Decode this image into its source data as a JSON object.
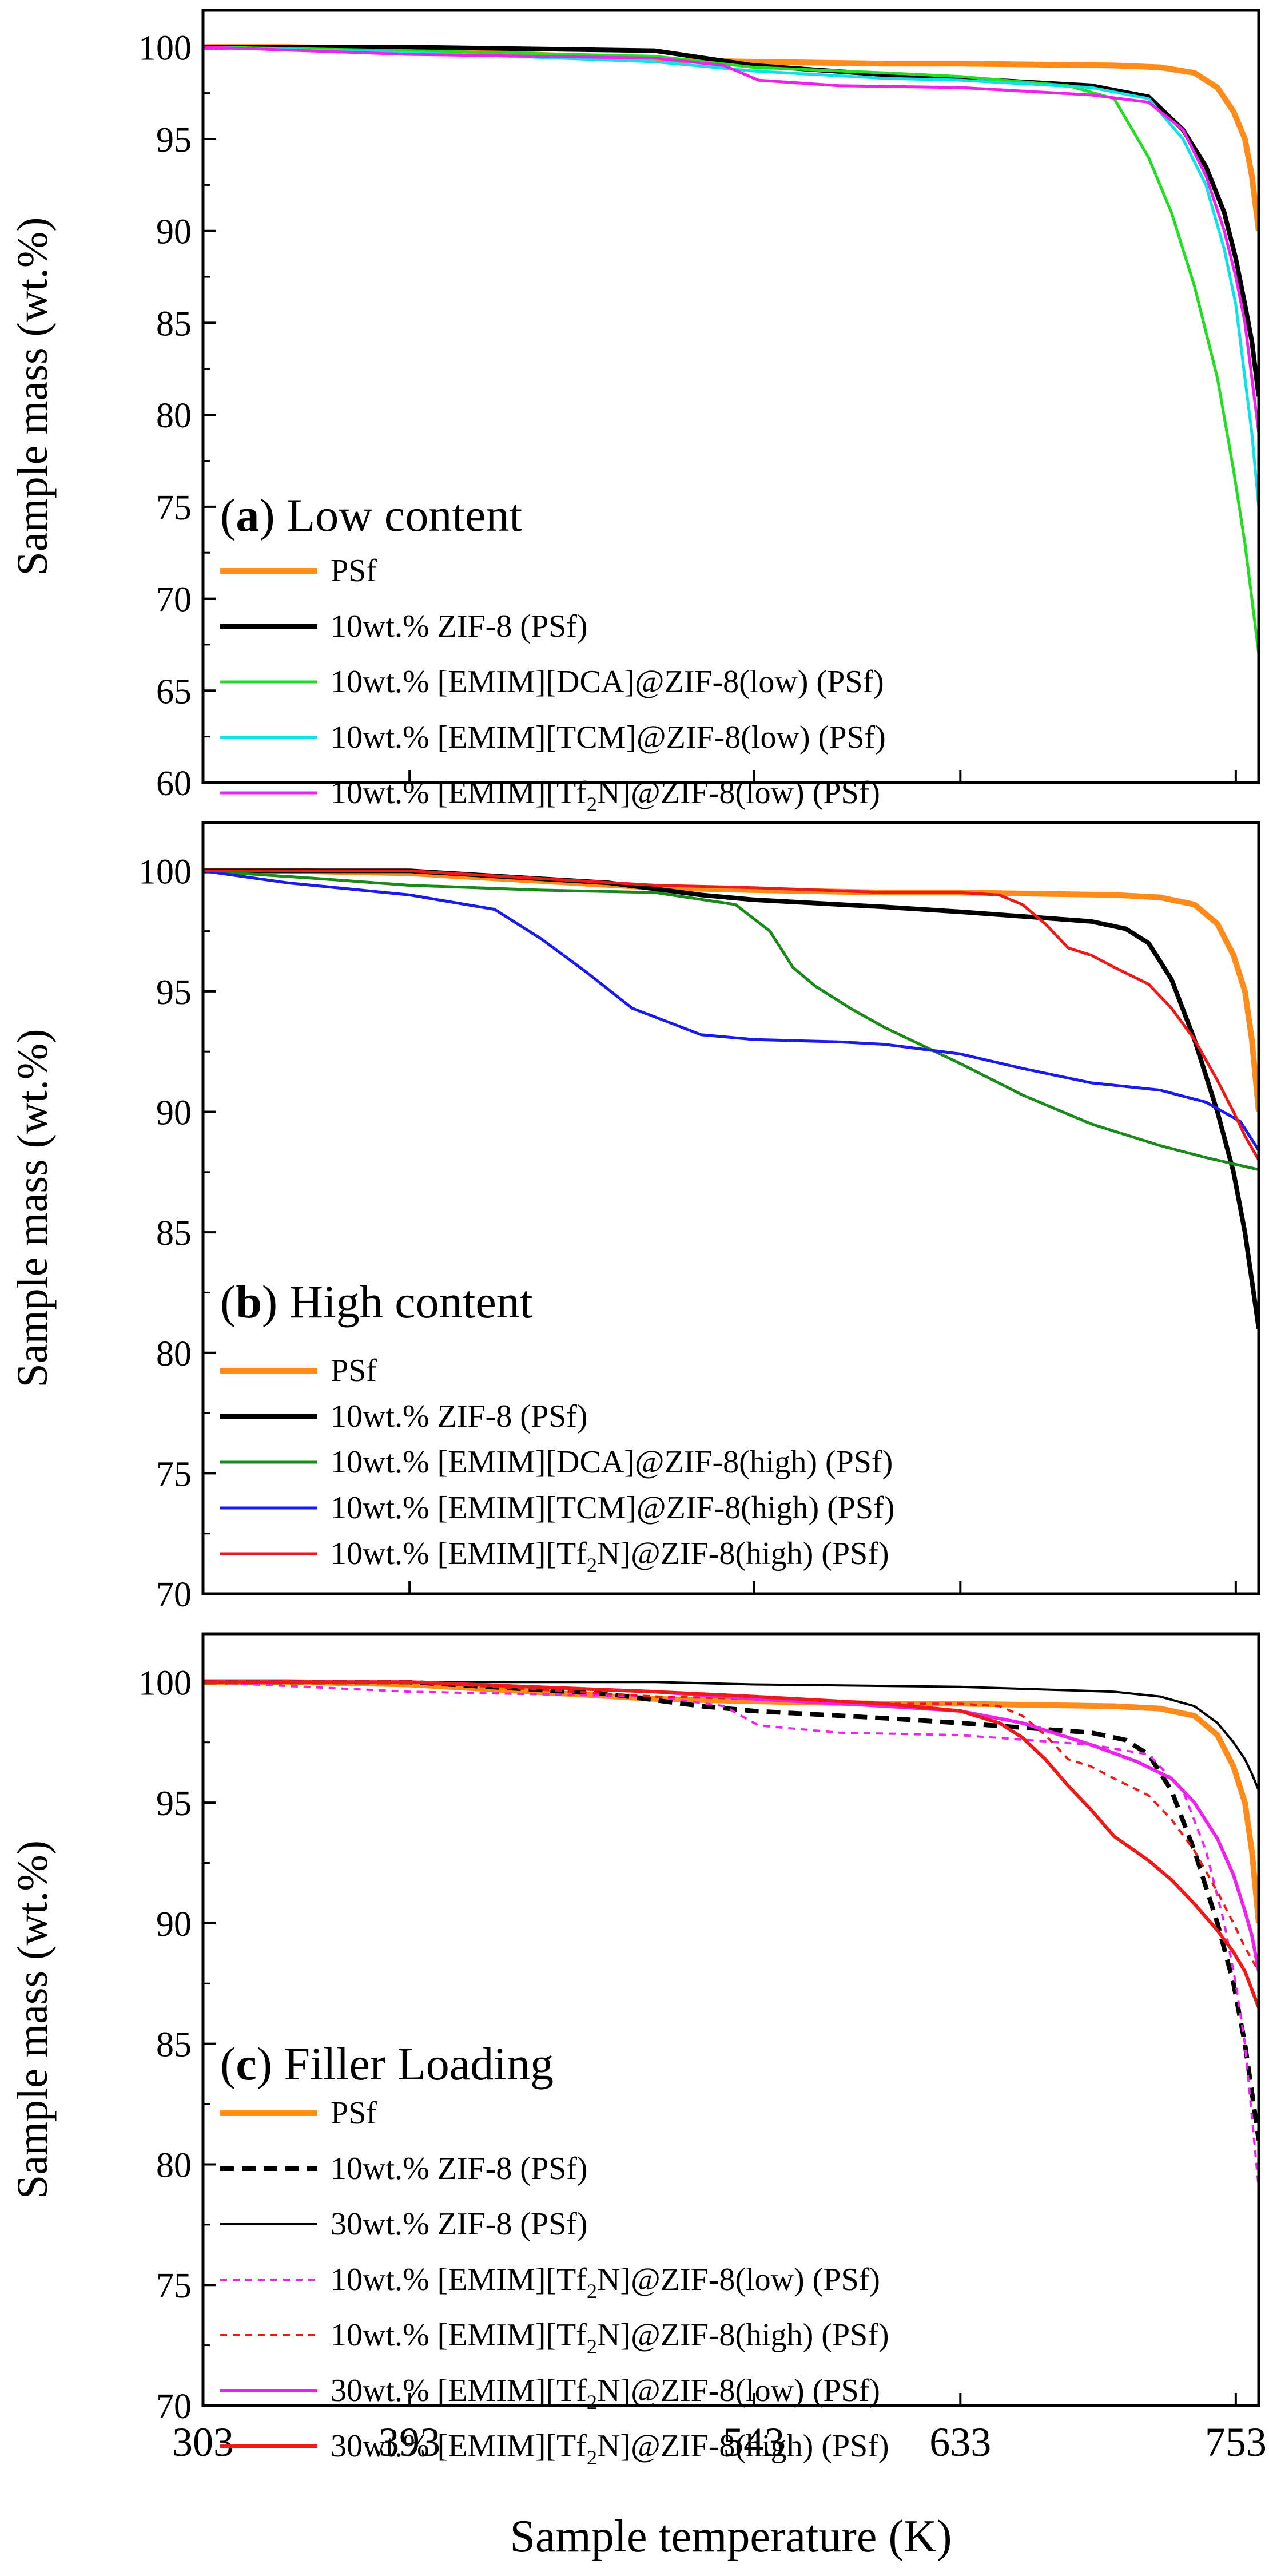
{
  "chart_data": [
    {
      "type": "line",
      "panel_label": "(a)",
      "panel_title": "Low content",
      "ylabel": "Sample mass (wt.%)",
      "xlabel": "",
      "xlim": [
        303,
        763
      ],
      "ylim": [
        60,
        102
      ],
      "yticks": [
        60,
        65,
        70,
        75,
        80,
        85,
        90,
        95,
        100
      ],
      "xticks": [
        303,
        393,
        543,
        633,
        753
      ],
      "xtick_labels_shown": false,
      "legend_position": "lower-left",
      "series": [
        {
          "name": "PSf",
          "color": "#ff8c1a",
          "width": 10,
          "dash": "",
          "x": [
            303,
            340,
            393,
            500,
            543,
            600,
            633,
            700,
            720,
            735,
            745,
            752,
            757,
            760,
            763
          ],
          "y": [
            100,
            100,
            99.9,
            99.3,
            99.2,
            99.1,
            99.1,
            99.0,
            98.9,
            98.6,
            97.8,
            96.5,
            95,
            93,
            90
          ]
        },
        {
          "name": "10wt.% ZIF-8 (PSf)",
          "color": "#000000",
          "width": 8,
          "dash": "",
          "x": [
            303,
            393,
            500,
            543,
            600,
            633,
            690,
            715,
            730,
            740,
            748,
            753,
            757,
            760,
            763
          ],
          "y": [
            100,
            100,
            99.8,
            99.0,
            98.5,
            98.3,
            97.9,
            97.3,
            95.5,
            93.5,
            91,
            88.5,
            86,
            84,
            81
          ]
        },
        {
          "name": "10wt.% [EMIM][DCA]@ZIF-8(low) (PSf)",
          "color": "#22dd22",
          "width": 5,
          "dash": "",
          "x": [
            303,
            393,
            500,
            543,
            600,
            633,
            680,
            700,
            715,
            725,
            735,
            745,
            752,
            757,
            760,
            763
          ],
          "y": [
            100,
            99.8,
            99.5,
            98.9,
            98.6,
            98.4,
            97.9,
            97.2,
            94,
            91,
            87,
            82,
            77,
            73,
            70,
            67
          ]
        },
        {
          "name": "10wt.% [EMIM][TCM]@ZIF-8(low) (PSf)",
          "color": "#11e0e8",
          "width": 5,
          "dash": "",
          "x": [
            303,
            393,
            500,
            543,
            600,
            633,
            690,
            715,
            730,
            740,
            748,
            753,
            757,
            760,
            763
          ],
          "y": [
            100,
            99.7,
            99.2,
            98.7,
            98.3,
            98.2,
            97.8,
            97.2,
            95,
            92.5,
            89,
            86,
            82,
            79,
            75
          ]
        },
        {
          "name": "10wt.% [EMIM][Tf2N]@ZIF-8(low) (PSf)",
          "color": "#ee22ee",
          "width": 5,
          "dash": "",
          "x": [
            303,
            393,
            500,
            530,
            545,
            580,
            633,
            690,
            715,
            730,
            740,
            748,
            753,
            757,
            760,
            763
          ],
          "y": [
            100,
            99.6,
            99.4,
            99.0,
            98.2,
            97.9,
            97.8,
            97.4,
            97.0,
            95.5,
            93,
            90,
            87.5,
            85,
            82,
            79
          ]
        }
      ]
    },
    {
      "type": "line",
      "panel_label": "(b)",
      "panel_title": "High content",
      "ylabel": "Sample mass (wt.%)",
      "xlabel": "",
      "xlim": [
        303,
        763
      ],
      "ylim": [
        70,
        102
      ],
      "yticks": [
        70,
        75,
        80,
        85,
        90,
        95,
        100
      ],
      "xticks": [
        303,
        393,
        543,
        633,
        753
      ],
      "xtick_labels_shown": false,
      "legend_position": "lower-left",
      "series": [
        {
          "name": "PSf",
          "color": "#ff8c1a",
          "width": 10,
          "dash": "",
          "x": [
            303,
            340,
            393,
            500,
            543,
            600,
            633,
            700,
            720,
            735,
            745,
            752,
            757,
            760,
            763
          ],
          "y": [
            100,
            100,
            99.9,
            99.3,
            99.2,
            99.1,
            99.1,
            99.0,
            98.9,
            98.6,
            97.8,
            96.5,
            95,
            93,
            90
          ]
        },
        {
          "name": "10wt.% ZIF-8 (PSf)",
          "color": "#000000",
          "width": 8,
          "dash": "",
          "x": [
            303,
            393,
            480,
            520,
            543,
            600,
            633,
            690,
            705,
            715,
            725,
            735,
            745,
            752,
            757,
            760,
            763
          ],
          "y": [
            100,
            100,
            99.5,
            99.0,
            98.8,
            98.5,
            98.3,
            97.9,
            97.6,
            97.0,
            95.5,
            93,
            90,
            87.5,
            85,
            83,
            81
          ]
        },
        {
          "name": "10wt.% [EMIM][DCA]@ZIF-8(high) (PSf)",
          "color": "#1a8a1a",
          "width": 5,
          "dash": "",
          "x": [
            303,
            350,
            393,
            450,
            500,
            535,
            550,
            560,
            570,
            585,
            600,
            633,
            660,
            690,
            720,
            740,
            763
          ],
          "y": [
            100,
            99.7,
            99.4,
            99.2,
            99.1,
            98.6,
            97.5,
            96.0,
            95.2,
            94.3,
            93.5,
            92.0,
            90.7,
            89.5,
            88.6,
            88.1,
            87.6
          ]
        },
        {
          "name": "10wt.% [EMIM][TCM]@ZIF-8(high) (PSf)",
          "color": "#1a1aee",
          "width": 5,
          "dash": "",
          "x": [
            303,
            340,
            393,
            430,
            450,
            470,
            490,
            520,
            543,
            580,
            600,
            633,
            660,
            690,
            720,
            740,
            755,
            763
          ],
          "y": [
            100,
            99.5,
            99.0,
            98.4,
            97.2,
            95.8,
            94.3,
            93.2,
            93.0,
            92.9,
            92.8,
            92.4,
            91.8,
            91.2,
            90.9,
            90.4,
            89.6,
            88.4
          ]
        },
        {
          "name": "10wt.% [EMIM][Tf2N]@ZIF-8(high) (PSf)",
          "color": "#ee1a1a",
          "width": 5,
          "dash": "",
          "x": [
            303,
            393,
            500,
            543,
            600,
            633,
            650,
            660,
            670,
            680,
            690,
            700,
            715,
            725,
            735,
            745,
            752,
            757,
            763
          ],
          "y": [
            100,
            100,
            99.4,
            99.3,
            99.1,
            99.1,
            99.0,
            98.6,
            97.8,
            96.8,
            96.5,
            96.0,
            95.3,
            94.3,
            93.0,
            91.3,
            90,
            89,
            88
          ]
        }
      ]
    },
    {
      "type": "line",
      "panel_label": "(c)",
      "panel_title": "Filler Loading",
      "ylabel": "Sample mass (wt.%)",
      "xlabel": "Sample temperature (K)",
      "xlim": [
        303,
        763
      ],
      "ylim": [
        70,
        102
      ],
      "yticks": [
        70,
        75,
        80,
        85,
        90,
        95,
        100
      ],
      "xticks": [
        303,
        393,
        543,
        633,
        753
      ],
      "xtick_labels_shown": true,
      "legend_position": "lower-left",
      "series": [
        {
          "name": "PSf",
          "color": "#ff8c1a",
          "width": 10,
          "dash": "",
          "x": [
            303,
            340,
            393,
            500,
            543,
            600,
            633,
            700,
            720,
            735,
            745,
            752,
            757,
            760,
            763
          ],
          "y": [
            100,
            100,
            99.9,
            99.3,
            99.2,
            99.1,
            99.1,
            99.0,
            98.9,
            98.6,
            97.8,
            96.5,
            95,
            93,
            90
          ]
        },
        {
          "name": "10wt.% ZIF-8 (PSf)",
          "color": "#000000",
          "width": 8,
          "dash": "24,14",
          "x": [
            303,
            393,
            480,
            520,
            543,
            600,
            633,
            690,
            705,
            715,
            725,
            735,
            745,
            752,
            757,
            760,
            763
          ],
          "y": [
            100,
            100,
            99.5,
            99.0,
            98.8,
            98.5,
            98.3,
            97.9,
            97.6,
            97.0,
            95.5,
            93,
            90,
            87.5,
            85,
            83,
            81
          ]
        },
        {
          "name": "30wt.% ZIF-8 (PSf)",
          "color": "#000000",
          "width": 4,
          "dash": "",
          "x": [
            303,
            393,
            500,
            543,
            633,
            700,
            720,
            735,
            745,
            752,
            757,
            760,
            763
          ],
          "y": [
            100,
            100,
            100,
            99.9,
            99.8,
            99.6,
            99.4,
            99.0,
            98.3,
            97.5,
            96.8,
            96.2,
            95.5
          ]
        },
        {
          "name": "10wt.% [EMIM][Tf2N]@ZIF-8(low) (PSf)",
          "color": "#ee22ee",
          "width": 4,
          "dash": "12,10",
          "x": [
            303,
            393,
            500,
            530,
            545,
            580,
            633,
            690,
            715,
            730,
            740,
            748,
            753,
            757,
            760,
            763
          ],
          "y": [
            100,
            99.6,
            99.4,
            99.0,
            98.2,
            97.9,
            97.8,
            97.4,
            97.0,
            95.5,
            93,
            90,
            87.5,
            85,
            82,
            79
          ]
        },
        {
          "name": "10wt.% [EMIM][Tf2N]@ZIF-8(high) (PSf)",
          "color": "#ee1a1a",
          "width": 4,
          "dash": "12,10",
          "x": [
            303,
            393,
            500,
            543,
            600,
            633,
            650,
            660,
            670,
            680,
            690,
            700,
            715,
            725,
            735,
            745,
            752,
            757,
            763
          ],
          "y": [
            100,
            100,
            99.4,
            99.3,
            99.1,
            99.1,
            99.0,
            98.6,
            97.8,
            96.8,
            96.5,
            96.0,
            95.3,
            94.3,
            93.0,
            91.3,
            90,
            89,
            88
          ]
        },
        {
          "name": "30wt.% [EMIM][Tf2N]@ZIF-8(low) (PSf)",
          "color": "#ee22ee",
          "width": 6,
          "dash": "",
          "x": [
            303,
            393,
            500,
            543,
            600,
            633,
            660,
            690,
            710,
            725,
            735,
            745,
            752,
            757,
            760,
            763
          ],
          "y": [
            100,
            100,
            99.6,
            99.3,
            99.0,
            98.8,
            98.3,
            97.4,
            96.7,
            96.0,
            95.0,
            93.5,
            92.0,
            90.5,
            89.5,
            88
          ]
        },
        {
          "name": "30wt.% [EMIM][Tf2N]@ZIF-8(high) (PSf)",
          "color": "#ee1a1a",
          "width": 6,
          "dash": "",
          "x": [
            303,
            393,
            500,
            543,
            600,
            633,
            650,
            660,
            670,
            680,
            690,
            700,
            715,
            725,
            735,
            745,
            752,
            757,
            763
          ],
          "y": [
            100,
            100,
            99.6,
            99.4,
            99.1,
            98.8,
            98.3,
            97.7,
            96.8,
            95.7,
            94.7,
            93.6,
            92.6,
            91.8,
            90.8,
            89.7,
            88.8,
            88.0,
            86.5
          ]
        }
      ]
    }
  ]
}
